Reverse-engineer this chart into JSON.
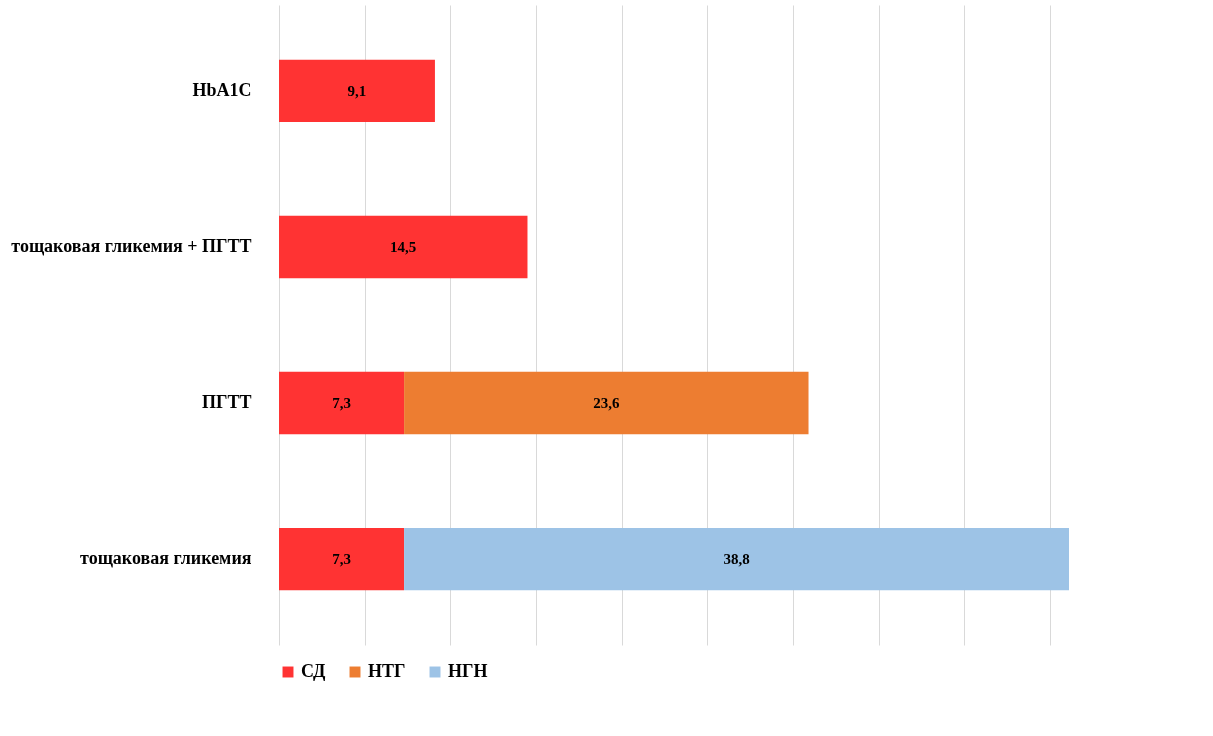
{
  "chart_data": {
    "type": "bar",
    "orientation": "horizontal",
    "stacked": true,
    "categories": [
      "HbA1C",
      "тощаковая гликемия + ПГТТ",
      "ПГТТ",
      "тощаковая гликемия"
    ],
    "series": [
      {
        "name": "СД",
        "color": "#ff3333",
        "values": [
          9.1,
          14.5,
          7.3,
          7.3
        ],
        "value_labels": [
          "9,1",
          "14,5",
          "7,3",
          "7,3"
        ]
      },
      {
        "name": "НТГ",
        "color": "#ed7d31",
        "values": [
          null,
          null,
          23.6,
          null
        ],
        "value_labels": [
          null,
          null,
          "23,6",
          null
        ]
      },
      {
        "name": "НГН",
        "color": "#9dc3e6",
        "values": [
          null,
          null,
          null,
          38.8
        ],
        "value_labels": [
          null,
          null,
          null,
          "38,8"
        ]
      }
    ],
    "grid": "x",
    "tick_labels": "y",
    "legend": "bottom"
  }
}
